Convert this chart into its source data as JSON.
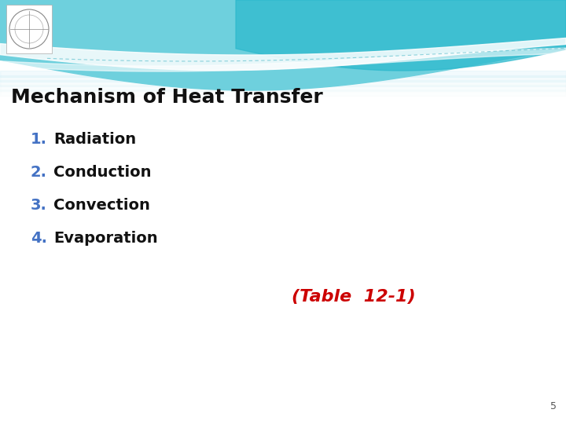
{
  "title": "Mechanism of Heat Transfer",
  "title_color": "#111111",
  "title_fontsize": 18,
  "title_fontweight": "bold",
  "items": [
    "Radiation",
    "Conduction",
    "Convection",
    "Evaporation"
  ],
  "item_numbers": [
    "1.",
    "2.",
    "3.",
    "4."
  ],
  "number_color": "#4472C4",
  "item_color": "#111111",
  "item_fontsize": 14,
  "item_fontweight": "bold",
  "table_ref": "(Table  12-1)",
  "table_ref_color": "#CC0000",
  "table_ref_fontsize": 16,
  "table_ref_fontweight": "bold",
  "bg_color": "#ffffff",
  "slide_number": "5",
  "slide_number_color": "#555555",
  "slide_number_fontsize": 9,
  "teal_dark": "#2ab8cc",
  "teal_mid": "#6ed0dd",
  "teal_light": "#ade8f0"
}
